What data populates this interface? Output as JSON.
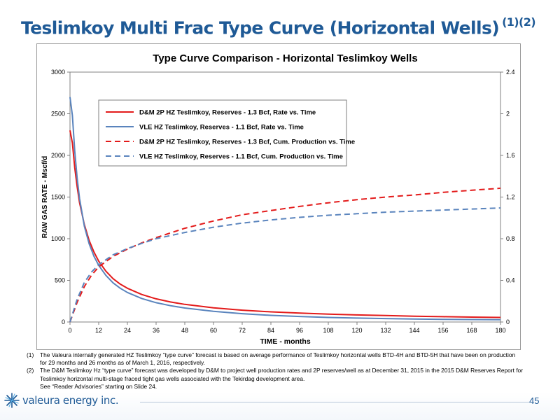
{
  "slide": {
    "title": "Teslimkoy Multi Frac Type Curve (Horizontal Wells)",
    "title_sup": "(1)(2)",
    "page_number": "45",
    "logo_text": "valeura energy inc.",
    "footnotes": [
      {
        "num": "(1)",
        "text": "The Valeura internally generated HZ Teslimkoy “type curve” forecast is based on average performance of Teslimkoy horizontal wells BTD-4H and BTD-5H that have been on production for 29 months and 26 months as of March 1, 2016, respectively."
      },
      {
        "num": "(2)",
        "text": "The D&M Teslimkoy Hz “type curve” forecast was developed by D&M to project well production rates and 2P reserves/well as at December 31, 2015 in the 2015 D&M Reserves Report for Teslimkoy horizontal multi-stage fraced tight gas wells associated with the Tekirdag development area."
      },
      {
        "num": "",
        "text": "See “Reader Advisories” starting on Slide 24."
      }
    ]
  },
  "chart_data": {
    "type": "line",
    "title": "Type Curve Comparison - Horizontal Teslimkoy Wells",
    "xlabel": "TIME - months",
    "ylabel": "RAW GAS RATE - Mscf/d",
    "y2label": "",
    "xlim": [
      0,
      180
    ],
    "ylim": [
      0,
      3000
    ],
    "y2lim": [
      0,
      2.4
    ],
    "xticks": [
      0,
      12,
      24,
      36,
      48,
      60,
      72,
      84,
      96,
      108,
      120,
      132,
      144,
      156,
      168,
      180
    ],
    "yticks": [
      0,
      500,
      1000,
      1500,
      2000,
      2500,
      3000
    ],
    "y2ticks": [
      "0",
      "0.4",
      "0.8",
      "1.2",
      "1.6",
      "2",
      "2.4"
    ],
    "y2tick_values": [
      0,
      0.4,
      0.8,
      1.2,
      1.6,
      2.0,
      2.4
    ],
    "grid": false,
    "legend_position": "top-left inside",
    "series": [
      {
        "name": "D&M 2P HZ Teslimkoy, Reserves - 1.3 Bcf, Rate vs. Time",
        "axis": "left",
        "color": "#e31b1b",
        "dash": "solid",
        "x": [
          0,
          1,
          2,
          3,
          4,
          6,
          8,
          10,
          12,
          15,
          18,
          21,
          24,
          30,
          36,
          42,
          48,
          60,
          72,
          84,
          96,
          108,
          120,
          132,
          144,
          156,
          168,
          180
        ],
        "y": [
          2300,
          2150,
          1850,
          1620,
          1430,
          1170,
          980,
          840,
          730,
          610,
          520,
          455,
          405,
          330,
          278,
          240,
          212,
          170,
          142,
          122,
          107,
          95,
          85,
          77,
          70,
          64,
          59,
          55
        ]
      },
      {
        "name": "VLE HZ Teslimkoy, Reserves - 1.1 Bcf, Rate vs. Time",
        "axis": "left",
        "color": "#5a84bd",
        "dash": "solid",
        "x": [
          0,
          1,
          2,
          3,
          4,
          6,
          8,
          10,
          12,
          15,
          18,
          21,
          24,
          30,
          36,
          42,
          48,
          60,
          72,
          84,
          96,
          108,
          120,
          132,
          144,
          156,
          168,
          180
        ],
        "y": [
          2700,
          2480,
          2050,
          1720,
          1480,
          1150,
          940,
          790,
          680,
          560,
          470,
          405,
          355,
          282,
          232,
          196,
          168,
          128,
          100,
          80,
          66,
          55,
          47,
          41,
          36,
          32,
          29,
          27
        ]
      },
      {
        "name": "D&M 2P HZ Teslimkoy, Reserves - 1.3 Bcf, Cum. Production vs. Time",
        "axis": "right",
        "color": "#e31b1b",
        "dash": "dash",
        "x": [
          0,
          3,
          6,
          9,
          12,
          18,
          24,
          30,
          36,
          48,
          60,
          72,
          84,
          96,
          108,
          120,
          132,
          144,
          156,
          168,
          180
        ],
        "y": [
          0,
          0.19,
          0.34,
          0.45,
          0.53,
          0.63,
          0.7,
          0.76,
          0.81,
          0.9,
          0.97,
          1.03,
          1.07,
          1.11,
          1.145,
          1.175,
          1.2,
          1.22,
          1.245,
          1.265,
          1.285
        ]
      },
      {
        "name": "VLE HZ Teslimkoy, Reserves - 1.1 Bcf, Cum. Production vs. Time",
        "axis": "right",
        "color": "#5a84bd",
        "dash": "dash",
        "x": [
          0,
          3,
          6,
          9,
          12,
          18,
          24,
          30,
          36,
          48,
          60,
          72,
          84,
          96,
          108,
          120,
          132,
          144,
          156,
          168,
          180
        ],
        "y": [
          0,
          0.22,
          0.38,
          0.48,
          0.55,
          0.645,
          0.705,
          0.755,
          0.8,
          0.86,
          0.91,
          0.95,
          0.98,
          1.005,
          1.025,
          1.04,
          1.055,
          1.065,
          1.075,
          1.085,
          1.095
        ]
      }
    ],
    "colors": {
      "dm": "#e31b1b",
      "vle": "#5a84bd",
      "title_blue": "#1f5a96"
    }
  }
}
